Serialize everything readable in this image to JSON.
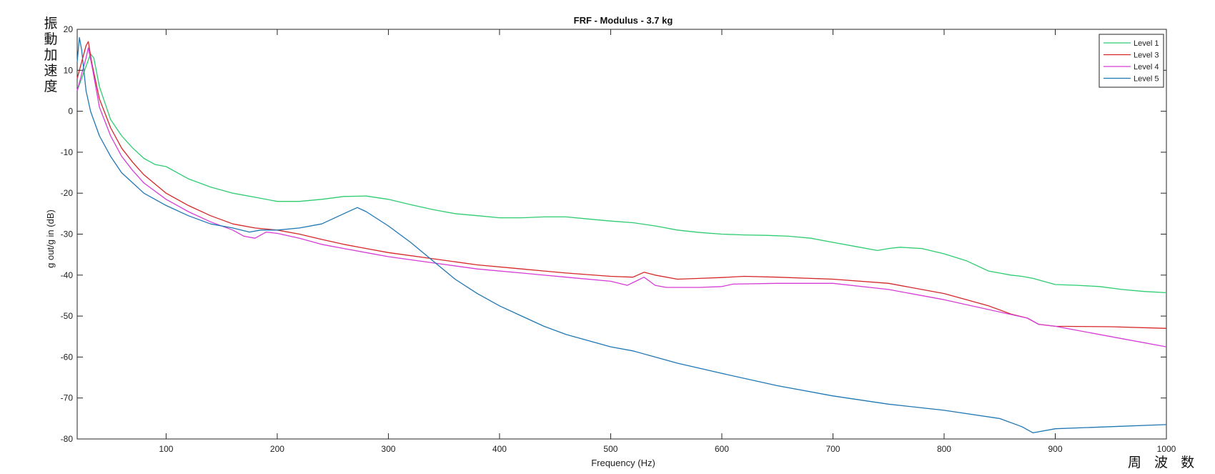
{
  "chart_data": {
    "type": "line",
    "title": "FRF - Modulus - 3.7 kg",
    "xlabel": "Frequency (Hz)",
    "ylabel": "g out/g in (dB)",
    "xlim": [
      20,
      1000
    ],
    "ylim": [
      -80,
      20
    ],
    "xticks": [
      100,
      200,
      300,
      400,
      500,
      600,
      700,
      800,
      900,
      1000
    ],
    "yticks": [
      -80,
      -70,
      -60,
      -50,
      -40,
      -30,
      -20,
      -10,
      0,
      10,
      20
    ],
    "grid": false,
    "legend_position": "top-right",
    "series": [
      {
        "name": "Level 1",
        "color": "#2ecc71",
        "x": [
          20,
          24,
          28,
          32,
          35,
          40,
          50,
          60,
          70,
          80,
          90,
          100,
          110,
          120,
          140,
          160,
          180,
          200,
          220,
          240,
          260,
          280,
          300,
          320,
          340,
          360,
          380,
          400,
          420,
          440,
          460,
          480,
          500,
          520,
          540,
          560,
          580,
          600,
          620,
          640,
          660,
          680,
          700,
          720,
          740,
          750,
          760,
          780,
          800,
          820,
          840,
          860,
          870,
          880,
          900,
          920,
          940,
          960,
          980,
          1000
        ],
        "y": [
          5,
          8,
          11,
          14,
          13,
          6,
          -2,
          -6,
          -9,
          -11.5,
          -13,
          -13.5,
          -15,
          -16.5,
          -18.5,
          -20,
          -21,
          -22,
          -22,
          -21.5,
          -20.8,
          -20.7,
          -21.5,
          -22.8,
          -24,
          -25,
          -25.5,
          -26,
          -26,
          -25.8,
          -25.8,
          -26.3,
          -26.8,
          -27.2,
          -28,
          -29,
          -29.6,
          -30,
          -30.2,
          -30.3,
          -30.5,
          -31,
          -32,
          -33,
          -34,
          -33.5,
          -33.2,
          -33.5,
          -34.8,
          -36.5,
          -39,
          -40,
          -40.3,
          -40.8,
          -42.3,
          -42.5,
          -42.8,
          -43.5,
          -44,
          -44.3
        ]
      },
      {
        "name": "Level 3",
        "color": "#d62728",
        "x": [
          20,
          24,
          28,
          30,
          33,
          40,
          50,
          60,
          70,
          80,
          100,
          120,
          140,
          160,
          180,
          200,
          220,
          240,
          260,
          280,
          300,
          340,
          380,
          420,
          460,
          500,
          520,
          530,
          540,
          560,
          580,
          600,
          620,
          650,
          700,
          750,
          800,
          840,
          860,
          875,
          885,
          900,
          950,
          1000
        ],
        "y": [
          8,
          12,
          16,
          17,
          12,
          3,
          -4,
          -9,
          -12.5,
          -15.5,
          -20,
          -23,
          -25.5,
          -27.5,
          -28.5,
          -29,
          -30,
          -31.3,
          -32.5,
          -33.5,
          -34.5,
          -36,
          -37.5,
          -38.5,
          -39.5,
          -40.3,
          -40.5,
          -39.3,
          -40,
          -41,
          -40.8,
          -40.6,
          -40.3,
          -40.5,
          -41,
          -42,
          -44.5,
          -47.5,
          -49.5,
          -50.5,
          -52,
          -52.5,
          -52.6,
          -53
        ]
      },
      {
        "name": "Level 4",
        "color": "#d63cd6",
        "x": [
          20,
          24,
          28,
          30,
          34,
          40,
          50,
          60,
          70,
          80,
          100,
          120,
          140,
          160,
          170,
          180,
          190,
          200,
          220,
          240,
          260,
          280,
          300,
          340,
          380,
          420,
          460,
          500,
          515,
          530,
          540,
          550,
          580,
          600,
          610,
          650,
          700,
          750,
          800,
          850,
          875,
          885,
          900,
          950,
          1000
        ],
        "y": [
          5,
          9,
          13,
          15.5,
          10,
          1,
          -6,
          -11,
          -14.5,
          -17.5,
          -21.5,
          -24.5,
          -27,
          -29,
          -30.5,
          -31,
          -29.5,
          -29.8,
          -31,
          -32.5,
          -33.5,
          -34.5,
          -35.5,
          -37,
          -38.5,
          -39.5,
          -40.5,
          -41.5,
          -42.5,
          -40.5,
          -42.5,
          -43,
          -43,
          -42.8,
          -42.2,
          -42,
          -42,
          -43.5,
          -46,
          -49,
          -50.5,
          -52,
          -52.5,
          -55,
          -57.5
        ]
      },
      {
        "name": "Level 5",
        "color": "#1f77b4",
        "x": [
          20,
          22,
          24,
          26,
          28,
          32,
          40,
          50,
          60,
          80,
          100,
          120,
          140,
          160,
          175,
          185,
          200,
          220,
          240,
          260,
          272,
          280,
          300,
          320,
          340,
          360,
          380,
          400,
          420,
          440,
          460,
          480,
          500,
          520,
          540,
          560,
          600,
          650,
          700,
          750,
          800,
          850,
          870,
          880,
          900,
          950,
          1000
        ],
        "y": [
          12,
          18,
          15,
          10,
          5,
          0,
          -6,
          -11,
          -15,
          -20,
          -23,
          -25.5,
          -27.5,
          -28.5,
          -29.5,
          -29,
          -29,
          -28.5,
          -27.5,
          -25,
          -23.5,
          -24.5,
          -28,
          -32,
          -36.5,
          -41,
          -44.5,
          -47.5,
          -50,
          -52.5,
          -54.5,
          -56,
          -57.5,
          -58.5,
          -60,
          -61.5,
          -64,
          -67,
          -69.5,
          -71.5,
          -73,
          -75,
          -77,
          -78.5,
          -77.5,
          -77,
          -76.5
        ]
      }
    ]
  },
  "annotations": {
    "y_vertical_text": "振\n動\n加\n速\n度",
    "x_bottom_right_text": "周 波 数"
  }
}
